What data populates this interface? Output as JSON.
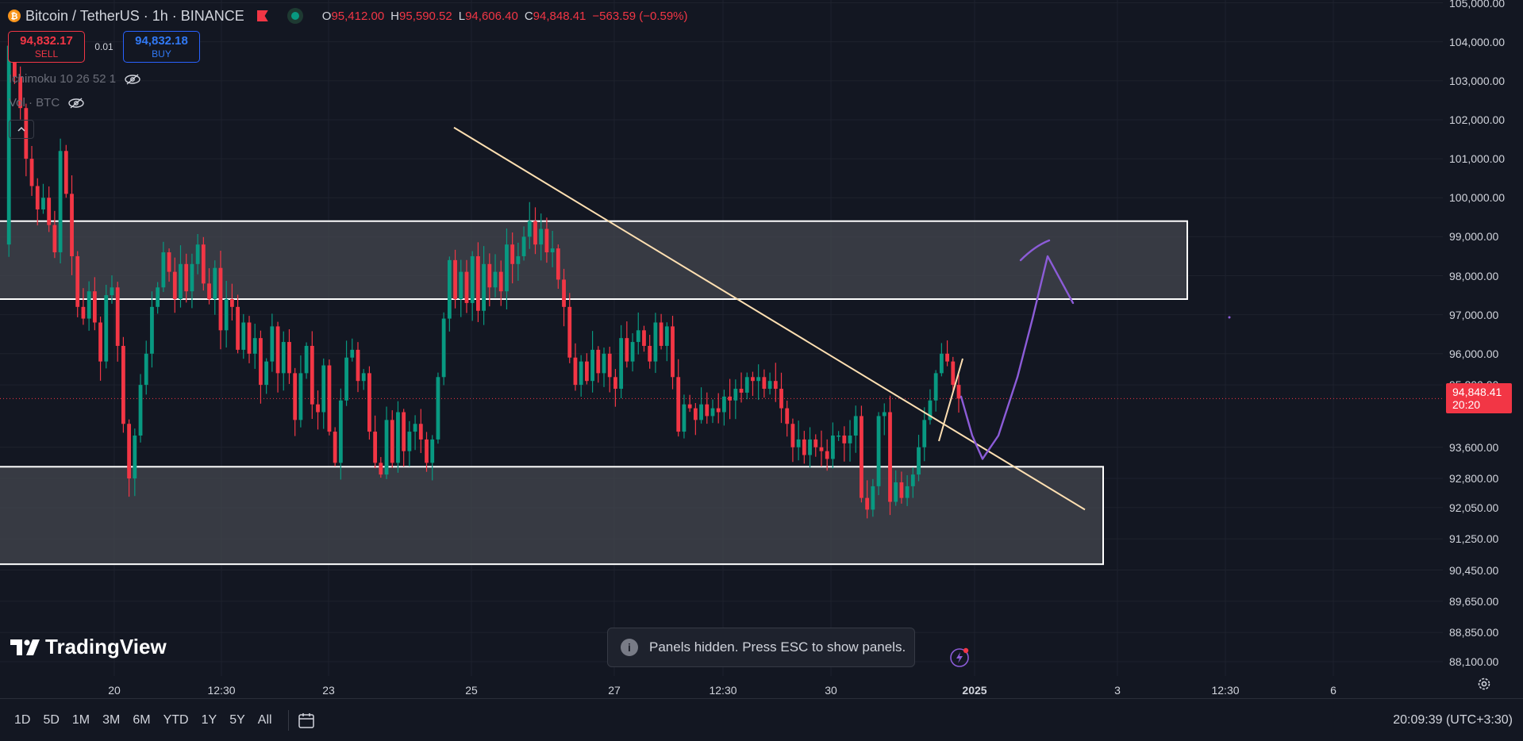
{
  "header": {
    "coin_symbol": "₿",
    "symbol": "Bitcoin / TetherUS · 1h · BINANCE",
    "ohlc": [
      {
        "key": "O",
        "value": "95,412.00"
      },
      {
        "key": "H",
        "value": "95,590.52"
      },
      {
        "key": "L",
        "value": "94,606.40"
      },
      {
        "key": "C",
        "value": "94,848.41"
      }
    ],
    "change": "−563.59 (−0.59%)"
  },
  "trade": {
    "sell_price": "94,832.17",
    "sell_label": "SELL",
    "spread": "0.01",
    "buy_price": "94,832.18",
    "buy_label": "BUY"
  },
  "indicators": {
    "ichimoku": "Ichimoku 10 26 52 1",
    "volume": "Vol · BTC"
  },
  "y_axis_labels": [
    "105,000.00",
    "104,000.00",
    "103,000.00",
    "102,000.00",
    "101,000.00",
    "100,000.00",
    "99,000.00",
    "98,000.00",
    "97,000.00",
    "96,000.00",
    "95,200.00",
    "93,600.00",
    "92,800.00",
    "92,050.00",
    "91,250.00",
    "90,450.00",
    "89,650.00",
    "88,850.00",
    "88,100.00"
  ],
  "last_price": {
    "price": "94,848.41",
    "countdown": "20:20"
  },
  "x_axis_labels": [
    {
      "text": "20",
      "bold": false
    },
    {
      "text": "12:30",
      "bold": false
    },
    {
      "text": "23",
      "bold": false
    },
    {
      "text": "25",
      "bold": false
    },
    {
      "text": "27",
      "bold": false
    },
    {
      "text": "12:30",
      "bold": false
    },
    {
      "text": "30",
      "bold": false
    },
    {
      "text": "2025",
      "bold": true
    },
    {
      "text": "3",
      "bold": false
    },
    {
      "text": "12:30",
      "bold": false
    },
    {
      "text": "6",
      "bold": false
    }
  ],
  "branding": "TradingView",
  "toast": "Panels hidden. Press ESC to show panels.",
  "timeframes": [
    "1D",
    "5D",
    "1M",
    "3M",
    "6M",
    "YTD",
    "1Y",
    "5Y",
    "All"
  ],
  "clock": "20:09:39 (UTC+3:30)",
  "colors": {
    "background": "#131722",
    "up": "#089981",
    "down": "#f23645",
    "trendline": "#ffe0b2",
    "projection": "#8c5cd8",
    "zone_fill": "#454850",
    "zone_border": "#ffffff"
  },
  "chart_data": {
    "type": "candlestick",
    "symbol": "BTC/USDT",
    "interval": "1h",
    "y_range": [
      88000,
      105000
    ],
    "last_price": 94848.41,
    "ohlc_path": [
      98800,
      103900,
      103100,
      102300,
      101000,
      100300,
      99700,
      100000,
      99300,
      98600,
      101200,
      100100,
      98500,
      97200,
      96900,
      97600,
      96800,
      95800,
      97500,
      97700,
      96200,
      94200,
      92800,
      93900,
      95200,
      96000,
      97200,
      97700,
      98600,
      98100,
      97400,
      98300,
      97600,
      98300,
      98800,
      97800,
      97400,
      98200,
      96600,
      97400,
      97200,
      96100,
      96800,
      96000,
      96400,
      95200,
      95800,
      96700,
      95500,
      96300,
      95500,
      94300,
      95500,
      96200,
      94700,
      94500,
      95700,
      94000,
      93200,
      94800,
      95900,
      96100,
      95300,
      95500,
      94000,
      93200,
      92900,
      94300,
      93200,
      94500,
      93500,
      94000,
      94200,
      93800,
      93200,
      93800,
      95400,
      96900,
      98400,
      97400,
      98100,
      97300,
      98500,
      97100,
      98300,
      97700,
      98100,
      97600,
      98800,
      98300,
      98500,
      99000,
      99400,
      98800,
      99200,
      98600,
      98700,
      97900,
      97200,
      95900,
      95200,
      95800,
      95300,
      96100,
      95500,
      96000,
      95400,
      95100,
      96400,
      95800,
      96300,
      96600,
      96200,
      95800,
      96800,
      96200,
      96700,
      95400,
      94000,
      94700,
      94600,
      94300,
      94700,
      94400,
      94600,
      94500,
      94900,
      94800,
      95100,
      95000,
      95400,
      95300,
      95400,
      95100,
      95300,
      95100,
      94600,
      94200,
      93600,
      93800,
      93400,
      93800,
      93600,
      93500,
      93300,
      93900,
      93900,
      93700,
      93900,
      94400,
      92300,
      92000,
      92600,
      94400,
      94500,
      92200,
      92700,
      92300,
      92600,
      92900,
      93600,
      94300,
      94800,
      95500,
      96000,
      95800,
      95200,
      94850
    ],
    "zones": [
      {
        "top": 99400,
        "bottom": 97400
      },
      {
        "top": 93100,
        "bottom": 90600
      }
    ],
    "trendline": {
      "start": {
        "bar": "Dec 24 late",
        "price": 101800
      },
      "end": {
        "bar": "Jan 2",
        "price": 92000
      }
    },
    "projection": [
      94900,
      93900,
      93300,
      93900,
      95400,
      96900,
      98500,
      97300
    ],
    "last_price_line": 94848.41
  }
}
